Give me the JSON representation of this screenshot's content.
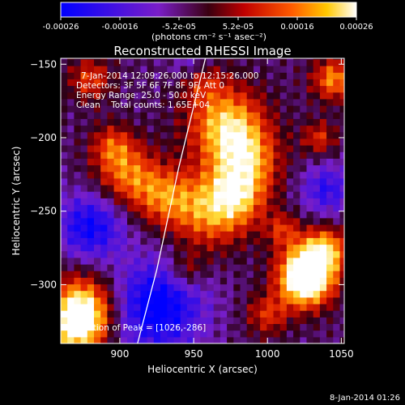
{
  "colorbar": {
    "ticks": [
      "-0.00026",
      "-0.00016",
      "-5.2e-05",
      "5.2e-05",
      "0.00016",
      "0.00026"
    ],
    "units": "(photons cm⁻² s⁻¹ asec⁻²)"
  },
  "chart_data": {
    "type": "heatmap",
    "title": "Reconstructed RHESSI Image",
    "xlabel": "Heliocentric X (arcsec)",
    "ylabel": "Heliocentric Y (arcsec)",
    "xlim": [
      860,
      1052
    ],
    "ylim": [
      -340,
      -146
    ],
    "x_ticks": [
      900,
      950,
      1000,
      1050
    ],
    "y_ticks": [
      -150,
      -200,
      -250,
      -300
    ],
    "colorbar_range": [
      -0.00026,
      0.00026
    ],
    "grid": false,
    "annotations": {
      "time_range": "7-Jan-2014 12:09:26.000 to 12:15:26.000",
      "detectors": "Detectors: 3F 5F 6F 7F 8F 9F, Att 0",
      "energy": "Energy Range: 25.0 - 50.0 keV",
      "clean": "Clean    Total counts: 1.65E+04",
      "peak": "Position of Peak = [1026,-286]"
    },
    "limb_curve": [
      [
        958,
        -146
      ],
      [
        940,
        -220
      ],
      [
        925,
        -290
      ],
      [
        912,
        -340
      ]
    ]
  },
  "footer": {
    "date": "8-Jan-2014 01:26"
  },
  "colors": {
    "background": "#000000",
    "text": "#ffffff"
  }
}
